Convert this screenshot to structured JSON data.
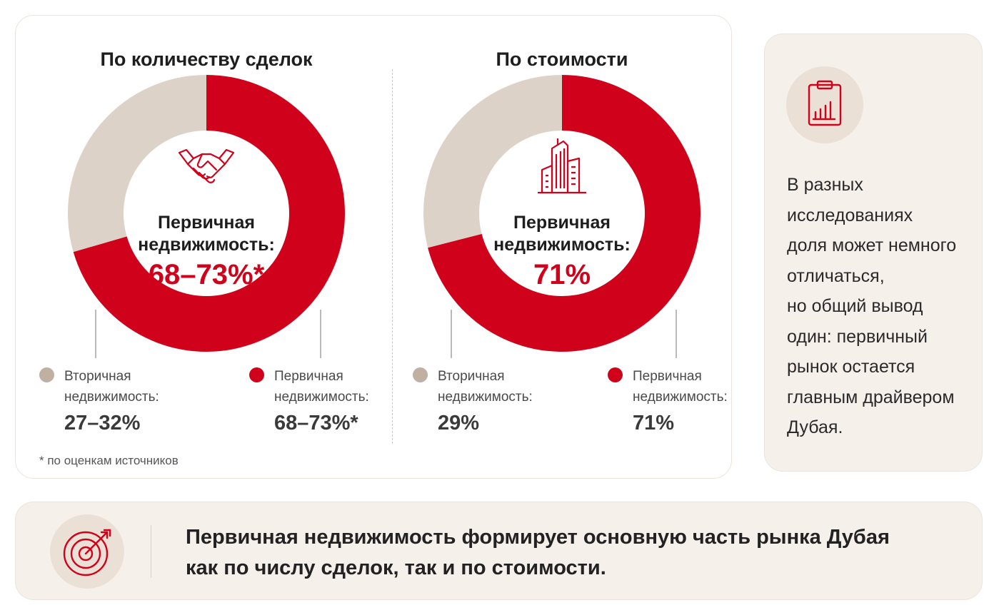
{
  "colors": {
    "primary": "#d0021b",
    "secondary": "#ddd2c7",
    "card_background": "#f6f0eb",
    "icon_background": "#ebe0d6"
  },
  "chart_data": [
    {
      "type": "pie",
      "title": "По количеству сделок",
      "center_icon": "handshake-icon",
      "center_label": [
        "Первичная",
        "недвижимость:"
      ],
      "center_value": "68–73%*",
      "slices": [
        {
          "name": "Первичная недвижимость:",
          "value": 70.5,
          "label": "68–73%*",
          "color": "#d0021b"
        },
        {
          "name": "Вторичная недвижимость:",
          "value": 29.5,
          "label": "27–32%",
          "color": "#ddd2c7"
        }
      ]
    },
    {
      "type": "pie",
      "title": "По стоимости",
      "center_icon": "buildings-icon",
      "center_label": [
        "Первичная",
        "недвижимость:"
      ],
      "center_value": "71%",
      "slices": [
        {
          "name": "Первичная недвижимость:",
          "value": 71,
          "label": "71%",
          "color": "#d0021b"
        },
        {
          "name": "Вторичная недвижимость:",
          "value": 29,
          "label": "29%",
          "color": "#ddd2c7"
        }
      ]
    }
  ],
  "legends": [
    {
      "secondary": {
        "line1": "Вторичная",
        "line2": "недвижимость:",
        "value": "27–32%"
      },
      "primary": {
        "line1": "Первичная",
        "line2": "недвижимость:",
        "value": "68–73%*"
      }
    },
    {
      "secondary": {
        "line1": "Вторичная",
        "line2": "недвижимость:",
        "value": "29%"
      },
      "primary": {
        "line1": "Первичная",
        "line2": "недвижимость:",
        "value": "71%"
      }
    }
  ],
  "footnote": "* по оценкам источников",
  "side_panel": {
    "icon": "clipboard-chart-icon",
    "lines": [
      "В разных",
      "исследованиях",
      "доля может немного",
      "отличаться,",
      "но общий вывод",
      "один: первичный",
      "рынок остается",
      "главным драйвером",
      "Дубая."
    ]
  },
  "conclusion": {
    "icon": "target-icon",
    "line1": "Первичная недвижимость формирует основную часть рынка Дубая",
    "line2": "как по числу сделок, так и по стоимости."
  }
}
